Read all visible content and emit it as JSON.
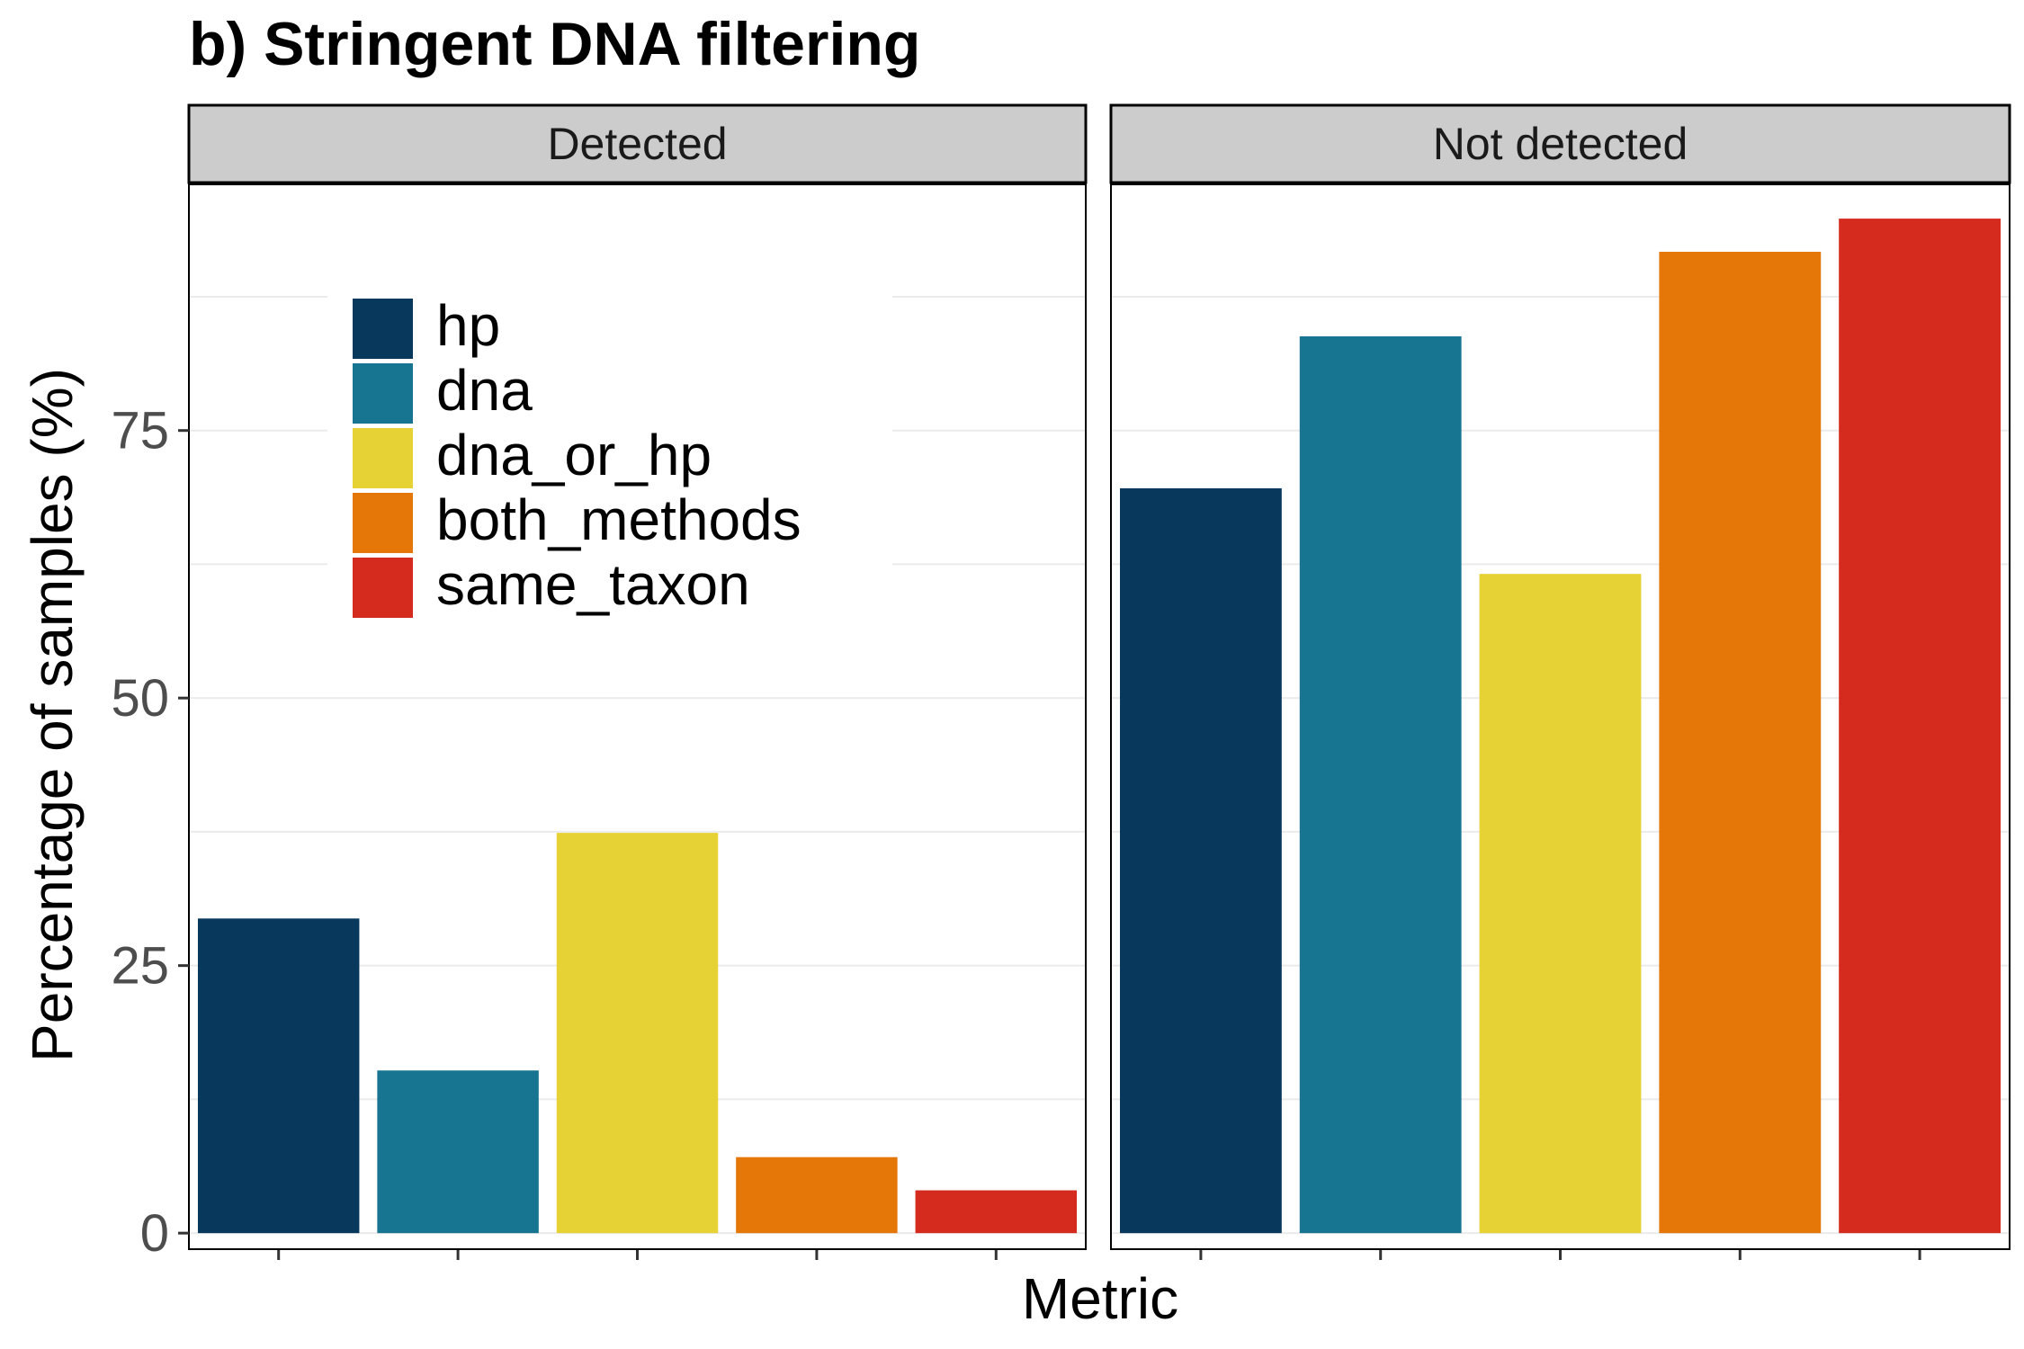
{
  "chart_data": {
    "type": "bar",
    "title": "b) Stringent DNA filtering",
    "xlabel": "Metric",
    "ylabel": "Percentage of samples (%)",
    "ylim": [
      -1.5,
      98
    ],
    "yticks": [
      0,
      25,
      50,
      75
    ],
    "grid": true,
    "legend_position": "inside top-left of first panel",
    "categories": [
      "hp",
      "dna",
      "dna_or_hp",
      "both_methods",
      "same_taxon"
    ],
    "colors": {
      "hp": "#08395C",
      "dna": "#177591",
      "dna_or_hp": "#E7D236",
      "both_methods": "#E57608",
      "same_taxon": "#D52B1E"
    },
    "panels": [
      {
        "strip": "Detected",
        "values": [
          29.4,
          15.2,
          37.4,
          7.1,
          4.0
        ]
      },
      {
        "strip": "Not detected",
        "values": [
          69.6,
          83.8,
          61.6,
          91.7,
          94.8
        ]
      }
    ]
  }
}
